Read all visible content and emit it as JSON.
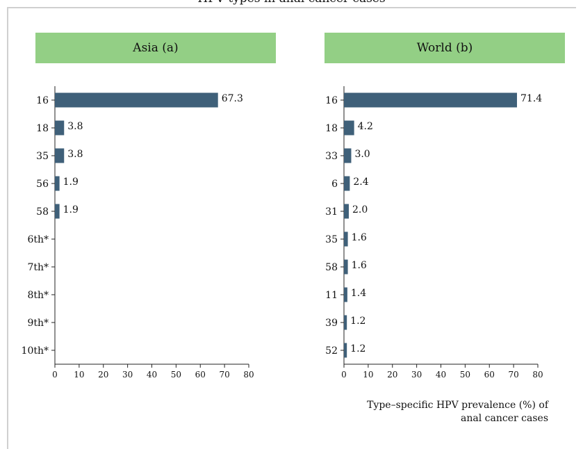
{
  "page": {
    "title": "HPV types in anal cancer cases",
    "footnote_line1": "Type–specific HPV prevalence (%) of",
    "footnote_line2": "anal cancer cases"
  },
  "colors": {
    "bar": "#3f6079",
    "header_bg": "#93cf85",
    "frame": "#d0d0d0"
  },
  "chart_data": [
    {
      "type": "bar",
      "orientation": "horizontal",
      "title": "Asia (a)",
      "categories": [
        "16",
        "18",
        "35",
        "56",
        "58",
        "6th*",
        "7th*",
        "8th*",
        "9th*",
        "10th*"
      ],
      "values": [
        67.3,
        3.8,
        3.8,
        1.9,
        1.9,
        null,
        null,
        null,
        null,
        null
      ],
      "value_labels": [
        "67.3",
        "3.8",
        "3.8",
        "1.9",
        "1.9",
        "",
        "",
        "",
        "",
        ""
      ],
      "xlim": [
        0,
        80
      ],
      "xticks": [
        0,
        10,
        20,
        30,
        40,
        50,
        60,
        70,
        80
      ],
      "grid": false
    },
    {
      "type": "bar",
      "orientation": "horizontal",
      "title": "World (b)",
      "categories": [
        "16",
        "18",
        "33",
        "6",
        "31",
        "35",
        "58",
        "11",
        "39",
        "52"
      ],
      "values": [
        71.4,
        4.2,
        3.0,
        2.4,
        2.0,
        1.6,
        1.6,
        1.4,
        1.2,
        1.2
      ],
      "value_labels": [
        "71.4",
        "4.2",
        "3.0",
        "2.4",
        "2.0",
        "1.6",
        "1.6",
        "1.4",
        "1.2",
        "1.2"
      ],
      "xlim": [
        0,
        80
      ],
      "xticks": [
        0,
        10,
        20,
        30,
        40,
        50,
        60,
        70,
        80
      ],
      "grid": false
    }
  ]
}
